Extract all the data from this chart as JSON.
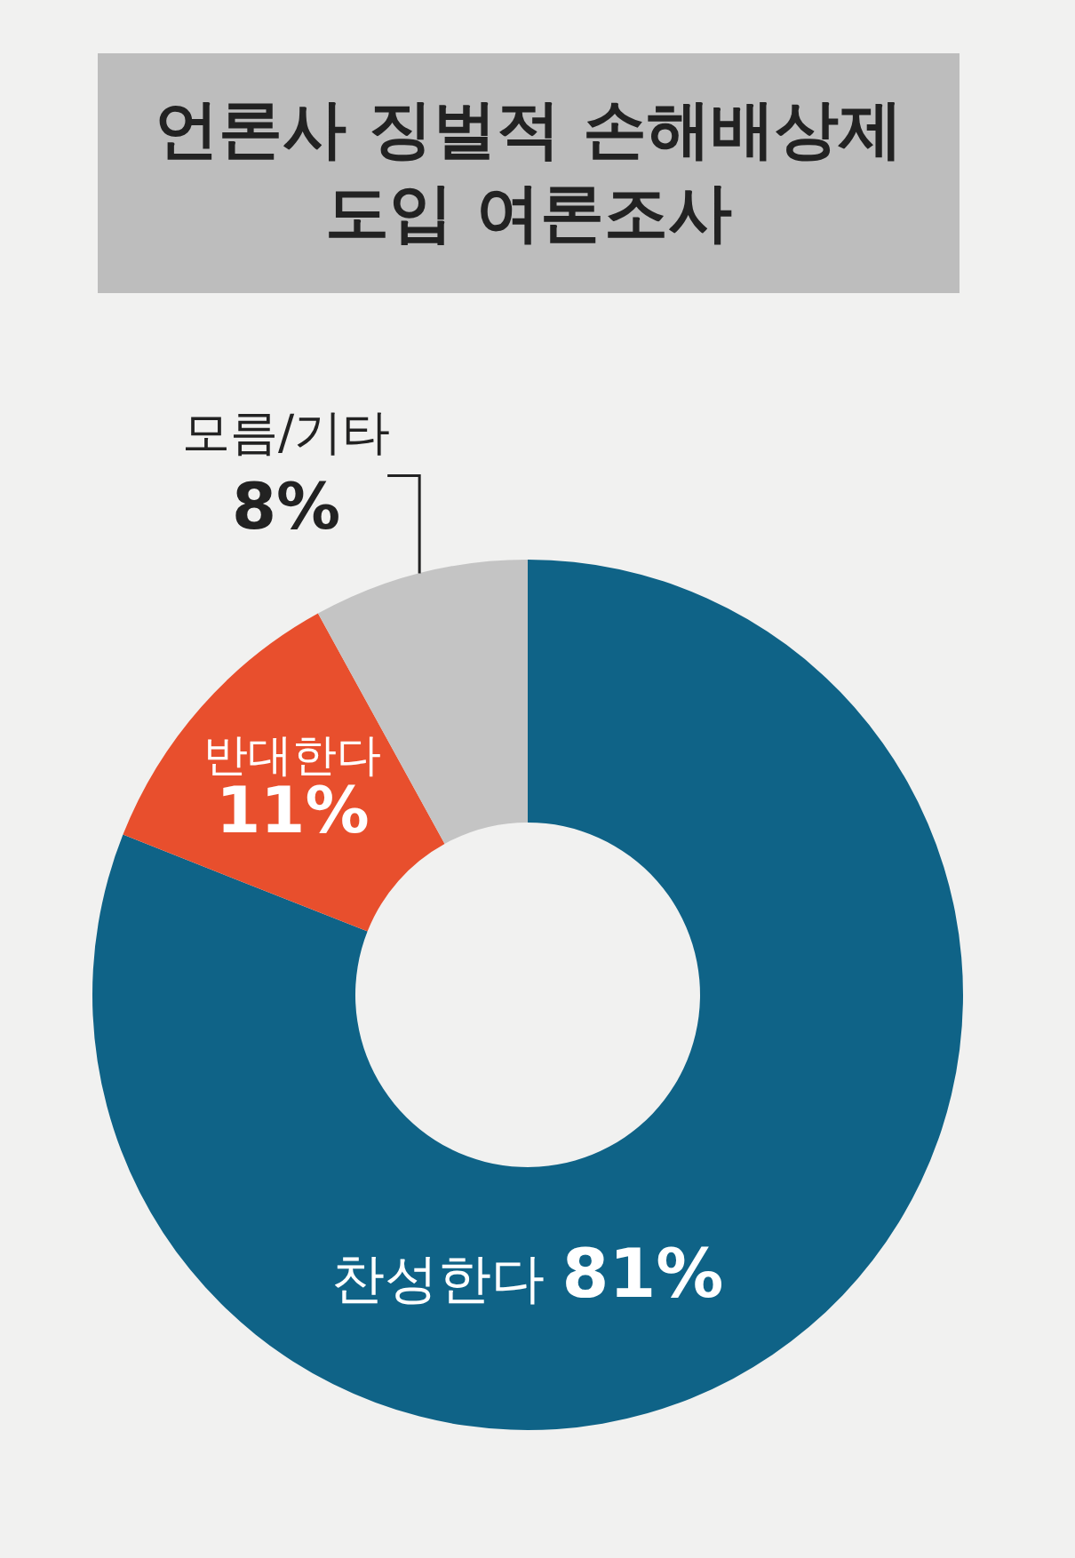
{
  "chart_data": {
    "type": "donut",
    "title": "언론사 징벌적 손해배상제 도입 여론조사",
    "categories": [
      "찬성한다",
      "반대한다",
      "모름/기타"
    ],
    "values": [
      81,
      11,
      8
    ],
    "value_labels": [
      "81%",
      "11%",
      "8%"
    ],
    "colors": [
      "#0f6387",
      "#e84f2d",
      "#c4c4c4"
    ],
    "legend": false
  }
}
